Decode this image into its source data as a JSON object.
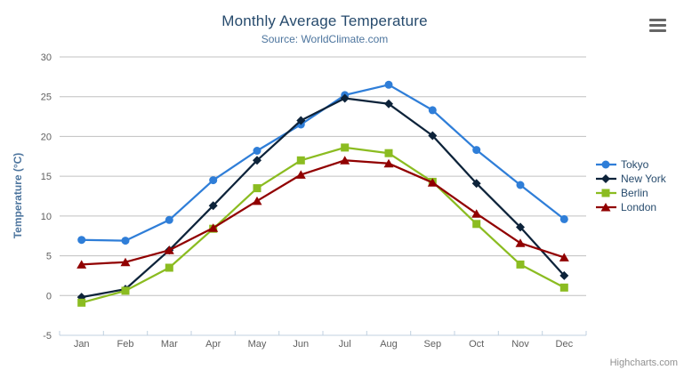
{
  "header": {
    "menu_icon": "hamburger-icon"
  },
  "credits": {
    "label": "Highcharts.com"
  },
  "style": {
    "title_color": "#274b6d",
    "subtitle_color": "#4d759e",
    "axis_label_color": "#606060",
    "grid_color": "#C0C0C0",
    "axis_line_color": "#C0D0E0",
    "legend_text_color": "#274b6d",
    "credits_color": "#909090",
    "menu_icon_color": "#666666"
  },
  "chart_data": {
    "type": "line",
    "title": "Monthly Average Temperature",
    "subtitle": "Source: WorldClimate.com",
    "xlabel": "",
    "ylabel": "Temperature (°C)",
    "categories": [
      "Jan",
      "Feb",
      "Mar",
      "Apr",
      "May",
      "Jun",
      "Jul",
      "Aug",
      "Sep",
      "Oct",
      "Nov",
      "Dec"
    ],
    "series": [
      {
        "name": "Tokyo",
        "color": "#2f7ed8",
        "marker": "circle",
        "values": [
          7.0,
          6.9,
          9.5,
          14.5,
          18.2,
          21.5,
          25.2,
          26.5,
          23.3,
          18.3,
          13.9,
          9.6
        ]
      },
      {
        "name": "New York",
        "color": "#0d233a",
        "marker": "diamond",
        "values": [
          -0.2,
          0.8,
          5.7,
          11.3,
          17.0,
          22.0,
          24.8,
          24.1,
          20.1,
          14.1,
          8.6,
          2.5
        ]
      },
      {
        "name": "Berlin",
        "color": "#8bbc21",
        "marker": "square",
        "values": [
          -0.9,
          0.6,
          3.5,
          8.4,
          13.5,
          17.0,
          18.6,
          17.9,
          14.3,
          9.0,
          3.9,
          1.0
        ]
      },
      {
        "name": "London",
        "color": "#910000",
        "marker": "triangle",
        "values": [
          3.9,
          4.2,
          5.7,
          8.5,
          11.9,
          15.2,
          17.0,
          16.6,
          14.2,
          10.3,
          6.6,
          4.8
        ]
      }
    ],
    "ylim": [
      -5,
      30
    ],
    "ytick_step": 5,
    "grid": true,
    "legend_position": "right"
  }
}
